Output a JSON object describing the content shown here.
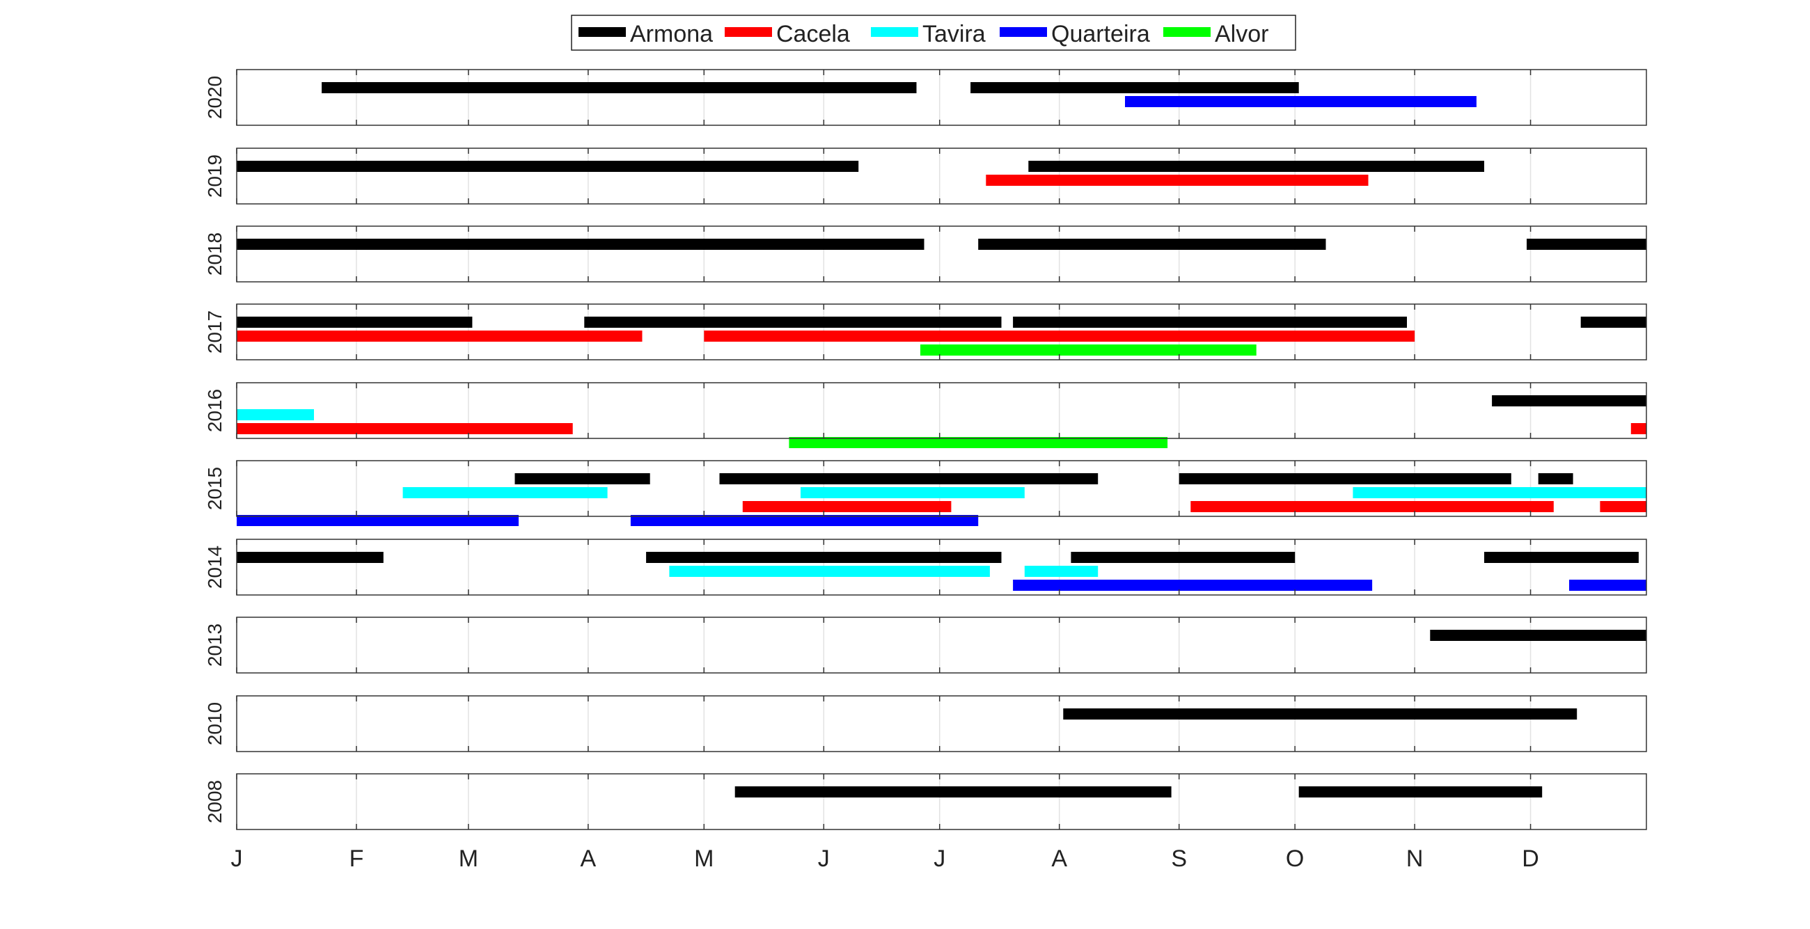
{
  "chart_data": {
    "type": "timeline",
    "title": "",
    "xlabel": "",
    "ylabel": "",
    "x_unit": "day of year",
    "xlim": [
      1,
      366
    ],
    "x_ticks": [
      {
        "day": 1,
        "label": "J"
      },
      {
        "day": 32,
        "label": "F"
      },
      {
        "day": 61,
        "label": "M"
      },
      {
        "day": 92,
        "label": "A"
      },
      {
        "day": 122,
        "label": "M"
      },
      {
        "day": 153,
        "label": "J"
      },
      {
        "day": 183,
        "label": "J"
      },
      {
        "day": 214,
        "label": "A"
      },
      {
        "day": 245,
        "label": "S"
      },
      {
        "day": 275,
        "label": "O"
      },
      {
        "day": 306,
        "label": "N"
      },
      {
        "day": 336,
        "label": "D"
      }
    ],
    "grid": true,
    "legend_position": "top-center",
    "series": [
      {
        "name": "Armona",
        "color": "#000000"
      },
      {
        "name": "Cacela",
        "color": "#ff0000"
      },
      {
        "name": "Tavira",
        "color": "#00ffff"
      },
      {
        "name": "Quarteira",
        "color": "#0000ff"
      },
      {
        "name": "Alvor",
        "color": "#00ff00"
      }
    ],
    "panels": [
      {
        "year": "2020",
        "tracks": [
          {
            "series": "Armona",
            "intervals": [
              [
                23,
                177
              ],
              [
                191,
                276
              ]
            ]
          },
          {
            "series": "Quarteira",
            "intervals": [
              [
                231,
                322
              ]
            ]
          }
        ]
      },
      {
        "year": "2019",
        "tracks": [
          {
            "series": "Armona",
            "intervals": [
              [
                1,
                162
              ],
              [
                206,
                324
              ]
            ]
          },
          {
            "series": "Cacela",
            "intervals": [
              [
                195,
                294
              ]
            ]
          }
        ]
      },
      {
        "year": "2018",
        "tracks": [
          {
            "series": "Armona",
            "intervals": [
              [
                1,
                179
              ],
              [
                193,
                283
              ],
              [
                335,
                366
              ]
            ]
          }
        ]
      },
      {
        "year": "2017",
        "tracks": [
          {
            "series": "Armona",
            "intervals": [
              [
                1,
                62
              ],
              [
                91,
                199
              ],
              [
                202,
                304
              ],
              [
                349,
                366
              ]
            ]
          },
          {
            "series": "Cacela",
            "intervals": [
              [
                1,
                106
              ],
              [
                122,
                306
              ]
            ]
          },
          {
            "series": "Alvor",
            "intervals": [
              [
                178,
                265
              ]
            ]
          }
        ]
      },
      {
        "year": "2016",
        "tracks": [
          {
            "series": "Armona",
            "intervals": [
              [
                326,
                366
              ]
            ]
          },
          {
            "series": "Tavira",
            "intervals": [
              [
                1,
                21
              ]
            ]
          },
          {
            "series": "Cacela",
            "intervals": [
              [
                1,
                88
              ],
              [
                362,
                366
              ]
            ]
          },
          {
            "series": "Alvor",
            "intervals": [
              [
                144,
                242
              ]
            ]
          }
        ]
      },
      {
        "year": "2015",
        "tracks": [
          {
            "series": "Armona",
            "intervals": [
              [
                73,
                108
              ],
              [
                126,
                224
              ],
              [
                245,
                331
              ],
              [
                338,
                347
              ]
            ]
          },
          {
            "series": "Tavira",
            "intervals": [
              [
                44,
                97
              ],
              [
                147,
                205
              ],
              [
                290,
                366
              ]
            ]
          },
          {
            "series": "Cacela",
            "intervals": [
              [
                132,
                186
              ],
              [
                248,
                342
              ],
              [
                354,
                366
              ]
            ]
          },
          {
            "series": "Quarteira",
            "intervals": [
              [
                1,
                74
              ],
              [
                103,
                193
              ]
            ]
          }
        ]
      },
      {
        "year": "2014",
        "tracks": [
          {
            "series": "Armona",
            "intervals": [
              [
                1,
                39
              ],
              [
                107,
                199
              ],
              [
                217,
                275
              ],
              [
                324,
                364
              ]
            ]
          },
          {
            "series": "Tavira",
            "intervals": [
              [
                113,
                196
              ],
              [
                205,
                224
              ]
            ]
          },
          {
            "series": "Quarteira",
            "intervals": [
              [
                202,
                295
              ],
              [
                346,
                366
              ]
            ]
          }
        ]
      },
      {
        "year": "2013",
        "tracks": [
          {
            "series": "Armona",
            "intervals": [
              [
                310,
                366
              ]
            ]
          }
        ]
      },
      {
        "year": "2010",
        "tracks": [
          {
            "series": "Armona",
            "intervals": [
              [
                215,
                348
              ]
            ]
          }
        ]
      },
      {
        "year": "2008",
        "tracks": [
          {
            "series": "Armona",
            "intervals": [
              [
                130,
                243
              ],
              [
                276,
                339
              ]
            ]
          }
        ]
      }
    ]
  }
}
